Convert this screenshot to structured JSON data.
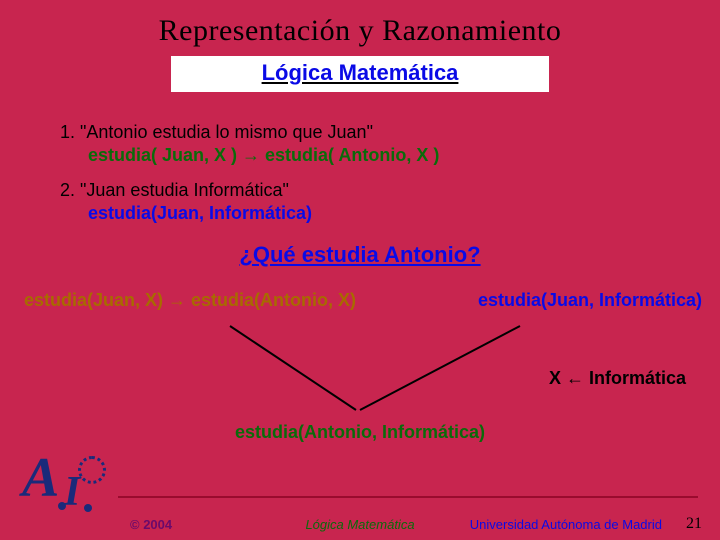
{
  "colors": {
    "background": "#c8254f",
    "box_bg": "#ffffff",
    "subtitle": "#0a0ae6",
    "item_text": "#000000",
    "formula1": "#0a6b0a",
    "formula2": "#0a0ae6",
    "question": "#0a0ae6",
    "left_deriv": "#a86a00",
    "right_deriv": "#0a0ae6",
    "unify": "#000000",
    "conclusion": "#0a6b0a",
    "footer_copyright": "#6b0a6b",
    "footer_center": "#0a6b0a",
    "footer_uni": "#0a0ae6",
    "line_stroke": "#000000",
    "footer_line": "#9a0b2e",
    "logo": "#1a2a7a"
  },
  "title": "Representación y Razonamiento",
  "subtitle": "Lógica Matemática",
  "item1_label": "1. \"Antonio estudia lo mismo que Juan\"",
  "item1_formula": "estudia( Juan, X ) → estudia( Antonio, X )",
  "item2_label": "2. \"Juan estudia Informática\"",
  "item2_formula": "estudia(Juan, Informática)",
  "question": "¿Qué estudia Antonio?",
  "deriv_left": "estudia(Juan, X) → estudia(Antonio, X)",
  "deriv_right": "estudia(Juan, Informática)",
  "unify": "X ← Informática",
  "conclusion": "estudia(Antonio, Informática)",
  "footer": {
    "copyright": "© 2004",
    "center": "Lógica Matemática",
    "uni": "Universidad Autónoma de Madrid",
    "page": "21"
  },
  "lines": {
    "x1a": 230,
    "y1a": 4,
    "x2a": 356,
    "y2a": 88,
    "x1b": 520,
    "y1b": 4,
    "x2b": 360,
    "y2b": 88,
    "stroke_width": 2
  },
  "fonts": {
    "title_family": "Times New Roman, serif",
    "body_family": "Comic Sans MS, cursive",
    "title_size": 30,
    "subtitle_size": 22,
    "body_size": 18,
    "question_size": 22,
    "footer_size": 13
  }
}
